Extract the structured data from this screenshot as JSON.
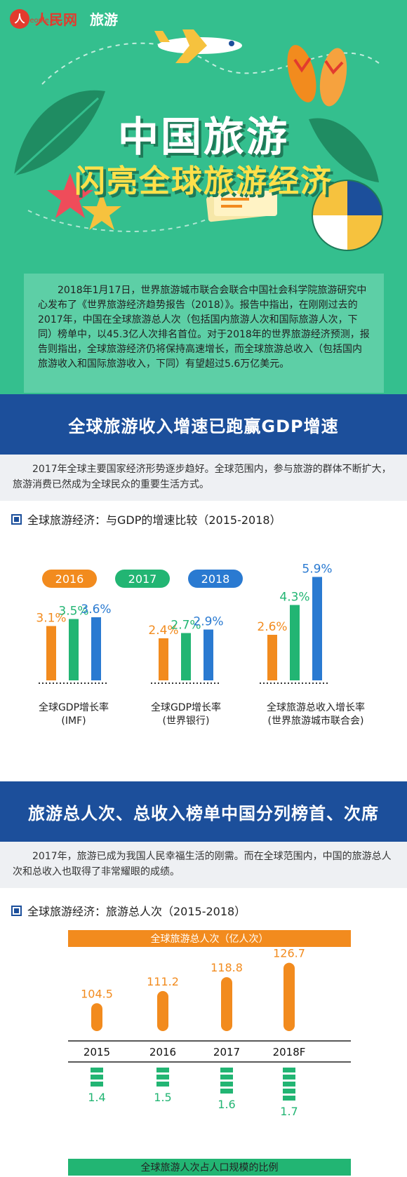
{
  "header": {
    "logo_char": "人",
    "logo_text": "人民网",
    "logo_sub": "people.cn",
    "channel": "旅游"
  },
  "hero": {
    "title_line1": "中国旅游",
    "title_line2": "闪亮全球旅游经济",
    "intro": "2018年1月17日，世界旅游城市联合会联合中国社会科学院旅游研究中心发布了《世界旅游经济趋势报告（2018）》。报告中指出，在刚刚过去的2017年，中国在全球旅游总人次（包括国内旅游人次和国际旅游人次，下同）榜单中，以45.3亿人次排名首位。对于2018年的世界旅游经济预测，报告则指出，全球旅游经济仍将保持高速增长，而全球旅游总收入（包括国内旅游收入和国际旅游收入，下同）有望超过5.6万亿美元。"
  },
  "section1": {
    "banner": "全球旅游收入增速已跑赢GDP增速",
    "lead": "2017年全球主要国家经济形势逐步趋好。全球范围内，参与旅游的群体不断扩大，旅游消费已然成为全球民众的重要生活方式。",
    "chart_title": "全球旅游经济：与GDP的增速比较（2015-2018）"
  },
  "section2": {
    "banner": "旅游总人次、总收入榜单中国分列榜首、次席",
    "lead": "2017年，旅游已成为我国人民幸福生活的刚需。而在全球范围内，中国的旅游总人次和总收入也取得了非常耀眼的成绩。",
    "chart_title": "全球旅游经济：旅游总人次（2015-2018）",
    "top_bar_label": "全球旅游总人次（亿人次）",
    "bottom_bar_label": "全球旅游人次占人口规模的比例"
  },
  "colors": {
    "orange": "#f28b1e",
    "green": "#22b573",
    "blue": "#2a7ad1",
    "navy": "#1c4f9b",
    "teal": "#34bf8e"
  },
  "chart_data": [
    {
      "type": "bar",
      "categories": [
        "全球GDP增长率\n(IMF)",
        "全球GDP增长率\n(世界银行)",
        "全球旅游总收入增长率\n(世界旅游城市联合会)"
      ],
      "category_labels": [
        [
          "全球GDP增长率",
          "(IMF)"
        ],
        [
          "全球GDP增长率",
          "(世界银行)"
        ],
        [
          "全球旅游总收入增长率",
          "(世界旅游城市联合会)"
        ]
      ],
      "series": [
        {
          "name": "2016",
          "values": [
            3.1,
            2.4,
            2.6
          ],
          "labels": [
            "3.1%",
            "2.4%",
            "2.6%"
          ],
          "color": "#f28b1e"
        },
        {
          "name": "2017",
          "values": [
            3.5,
            2.7,
            4.3
          ],
          "labels": [
            "3.5%",
            "2.7%",
            "4.3%"
          ],
          "color": "#22b573"
        },
        {
          "name": "2018",
          "values": [
            3.6,
            2.9,
            5.9
          ],
          "labels": [
            "3.6%",
            "2.9%",
            "5.9%"
          ],
          "color": "#2a7ad1"
        }
      ],
      "ylim": [
        0,
        6
      ],
      "legend": "top"
    },
    {
      "type": "bar",
      "categories": [
        "2015",
        "2016",
        "2017",
        "2018F"
      ],
      "series": [
        {
          "name": "全球旅游总人次（亿人次）",
          "values": [
            104.5,
            111.2,
            118.8,
            126.7
          ],
          "labels": [
            "104.5",
            "111.2",
            "118.8",
            "126.7"
          ],
          "color": "#f28b1e"
        },
        {
          "name": "全球旅游人次占人口规模的比例",
          "values": [
            1.4,
            1.5,
            1.6,
            1.7
          ],
          "labels": [
            "1.4",
            "1.5",
            "1.6",
            "1.7"
          ],
          "color": "#22b573"
        }
      ]
    }
  ]
}
